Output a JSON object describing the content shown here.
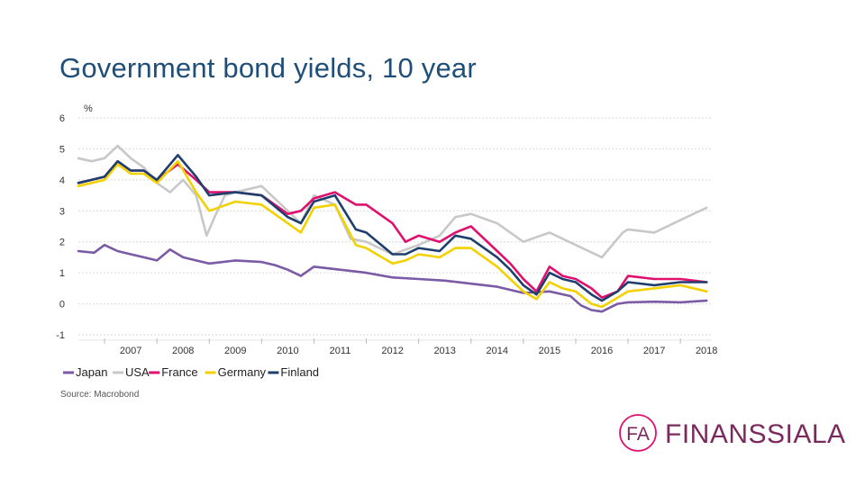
{
  "slide": {
    "title": "Government bond yields, 10 year",
    "source": "Source: Macrobond",
    "logo_text": "FINANSSIALA",
    "logo_mark": "FA"
  },
  "colors": {
    "title": "#1f4e79",
    "logo": "#7b2a5e",
    "logo_accent": "#e0106e"
  },
  "chart_data": {
    "type": "line",
    "title": "",
    "ylabel": "%",
    "xlabel": "",
    "ylim": [
      -1,
      6
    ],
    "yticks": [
      6,
      5,
      4,
      3,
      2,
      1,
      0,
      -1
    ],
    "xlim": [
      2006.5,
      2018.6
    ],
    "xticks": [
      "2007",
      "2008",
      "2009",
      "2010",
      "2011",
      "2012",
      "2013",
      "2014",
      "2015",
      "2016",
      "2017",
      "2018"
    ],
    "grid": true,
    "legend_position": "bottom",
    "series": [
      {
        "name": "Japan",
        "color": "#7b5aa6",
        "x": [
          2006.5,
          2006.8,
          2007.0,
          2007.25,
          2007.5,
          2007.75,
          2008.0,
          2008.25,
          2008.5,
          2008.75,
          2009.0,
          2009.5,
          2010.0,
          2010.25,
          2010.5,
          2010.75,
          2011.0,
          2011.5,
          2012.0,
          2012.5,
          2013.0,
          2013.5,
          2014.0,
          2014.5,
          2015.0,
          2015.5,
          2015.9,
          2016.1,
          2016.3,
          2016.5,
          2016.8,
          2017.0,
          2017.5,
          2018.0,
          2018.5
        ],
        "y": [
          1.7,
          1.65,
          1.9,
          1.7,
          1.6,
          1.5,
          1.4,
          1.75,
          1.5,
          1.4,
          1.3,
          1.4,
          1.35,
          1.25,
          1.1,
          0.9,
          1.2,
          1.1,
          1.0,
          0.85,
          0.8,
          0.75,
          0.65,
          0.55,
          0.35,
          0.4,
          0.25,
          -0.05,
          -0.2,
          -0.25,
          0.0,
          0.05,
          0.07,
          0.05,
          0.1
        ]
      },
      {
        "name": "USA",
        "color": "#c8c8c8",
        "x": [
          2006.5,
          2006.75,
          2007.0,
          2007.25,
          2007.5,
          2007.75,
          2008.0,
          2008.25,
          2008.5,
          2008.75,
          2008.95,
          2009.1,
          2009.3,
          2009.5,
          2010.0,
          2010.5,
          2010.75,
          2011.0,
          2011.4,
          2011.7,
          2012.0,
          2012.5,
          2013.0,
          2013.4,
          2013.7,
          2014.0,
          2014.5,
          2015.0,
          2015.5,
          2016.0,
          2016.5,
          2016.9,
          2017.0,
          2017.5,
          2018.0,
          2018.5
        ],
        "y": [
          4.7,
          4.6,
          4.7,
          5.1,
          4.7,
          4.4,
          3.9,
          3.6,
          4.0,
          3.5,
          2.2,
          2.8,
          3.5,
          3.6,
          3.8,
          3.0,
          2.6,
          3.5,
          3.2,
          2.1,
          2.0,
          1.6,
          1.9,
          2.2,
          2.8,
          2.9,
          2.6,
          2.0,
          2.3,
          1.9,
          1.5,
          2.3,
          2.4,
          2.3,
          2.7,
          3.1
        ]
      },
      {
        "name": "France",
        "color": "#e0106e",
        "x": [
          2006.5,
          2006.75,
          2007.0,
          2007.25,
          2007.5,
          2007.75,
          2008.0,
          2008.4,
          2008.75,
          2009.0,
          2009.5,
          2010.0,
          2010.5,
          2010.75,
          2011.0,
          2011.4,
          2011.8,
          2012.0,
          2012.5,
          2012.75,
          2013.0,
          2013.4,
          2013.7,
          2014.0,
          2014.5,
          2014.75,
          2015.0,
          2015.25,
          2015.5,
          2015.75,
          2016.0,
          2016.3,
          2016.5,
          2016.8,
          2017.0,
          2017.5,
          2018.0,
          2018.5
        ],
        "y": [
          3.9,
          4.0,
          4.1,
          4.6,
          4.3,
          4.3,
          4.0,
          4.5,
          4.0,
          3.6,
          3.6,
          3.5,
          2.9,
          3.0,
          3.4,
          3.6,
          3.2,
          3.2,
          2.6,
          2.0,
          2.2,
          2.0,
          2.3,
          2.5,
          1.7,
          1.3,
          0.8,
          0.4,
          1.2,
          0.9,
          0.8,
          0.5,
          0.2,
          0.4,
          0.9,
          0.8,
          0.8,
          0.7
        ]
      },
      {
        "name": "Germany",
        "color": "#f3d100",
        "x": [
          2006.5,
          2006.75,
          2007.0,
          2007.25,
          2007.5,
          2007.75,
          2008.0,
          2008.4,
          2008.75,
          2009.0,
          2009.5,
          2010.0,
          2010.5,
          2010.75,
          2011.0,
          2011.4,
          2011.8,
          2012.0,
          2012.5,
          2012.75,
          2013.0,
          2013.4,
          2013.7,
          2014.0,
          2014.5,
          2014.75,
          2015.0,
          2015.25,
          2015.5,
          2015.75,
          2016.0,
          2016.3,
          2016.5,
          2016.8,
          2017.0,
          2017.5,
          2018.0,
          2018.5
        ],
        "y": [
          3.8,
          3.9,
          4.0,
          4.5,
          4.2,
          4.2,
          3.9,
          4.6,
          3.6,
          3.0,
          3.3,
          3.2,
          2.6,
          2.3,
          3.1,
          3.2,
          1.9,
          1.8,
          1.3,
          1.4,
          1.6,
          1.5,
          1.8,
          1.8,
          1.2,
          0.8,
          0.4,
          0.15,
          0.7,
          0.5,
          0.4,
          0.0,
          -0.1,
          0.2,
          0.4,
          0.5,
          0.6,
          0.4
        ]
      },
      {
        "name": "Finland",
        "color": "#1e3f6e",
        "x": [
          2006.5,
          2006.75,
          2007.0,
          2007.25,
          2007.5,
          2007.75,
          2008.0,
          2008.4,
          2008.75,
          2009.0,
          2009.5,
          2010.0,
          2010.5,
          2010.75,
          2011.0,
          2011.4,
          2011.8,
          2012.0,
          2012.5,
          2012.75,
          2013.0,
          2013.4,
          2013.7,
          2014.0,
          2014.5,
          2014.75,
          2015.0,
          2015.25,
          2015.5,
          2015.75,
          2016.0,
          2016.3,
          2016.5,
          2016.8,
          2017.0,
          2017.5,
          2018.0,
          2018.5
        ],
        "y": [
          3.9,
          4.0,
          4.1,
          4.6,
          4.3,
          4.3,
          4.0,
          4.8,
          4.1,
          3.5,
          3.6,
          3.5,
          2.8,
          2.6,
          3.3,
          3.5,
          2.4,
          2.3,
          1.6,
          1.6,
          1.8,
          1.7,
          2.2,
          2.1,
          1.5,
          1.1,
          0.6,
          0.3,
          1.0,
          0.8,
          0.7,
          0.3,
          0.1,
          0.4,
          0.7,
          0.6,
          0.7,
          0.7
        ]
      }
    ]
  }
}
